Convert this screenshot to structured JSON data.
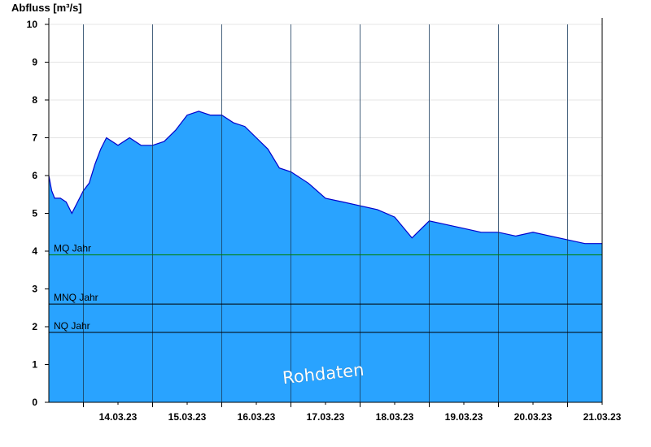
{
  "chart_data": {
    "type": "area",
    "ylabel": "Abfluss [m³/s]",
    "ylim": [
      0,
      10
    ],
    "yticks": [
      "0",
      "1",
      "2",
      "3",
      "4",
      "5",
      "6",
      "7",
      "8",
      "9",
      "10"
    ],
    "xlim": [
      "13.03.23 12:00",
      "21.03.23 12:00"
    ],
    "xtick_labels": [
      "14.03.23",
      "15.03.23",
      "16.03.23",
      "17.03.23",
      "18.03.23",
      "19.03.23",
      "20.03.23",
      "21.03.23"
    ],
    "grid": true,
    "watermark": "Rohdaten",
    "fill_color": "#29a3ff",
    "line_color": "#0000cc",
    "reference_lines": [
      {
        "label": "MQ Jahr",
        "value": 3.9,
        "color": "#007f00"
      },
      {
        "label": "MNQ Jahr",
        "value": 2.6,
        "color": "#000000"
      },
      {
        "label": "NQ Jahr",
        "value": 1.85,
        "color": "#000000"
      }
    ],
    "series": [
      {
        "x": [
          "13.03.23 12:00",
          "13.03.23 13:00",
          "13.03.23 14:00",
          "13.03.23 16:00",
          "13.03.23 18:00",
          "13.03.23 20:00",
          "13.03.23 22:00",
          "14.03.23 00:00",
          "14.03.23 02:00",
          "14.03.23 04:00",
          "14.03.23 06:00",
          "14.03.23 08:00",
          "14.03.23 12:00",
          "14.03.23 16:00",
          "14.03.23 20:00",
          "15.03.23 00:00",
          "15.03.23 04:00",
          "15.03.23 08:00",
          "15.03.23 12:00",
          "15.03.23 16:00",
          "15.03.23 20:00",
          "16.03.23 00:00",
          "16.03.23 04:00",
          "16.03.23 08:00",
          "16.03.23 12:00",
          "16.03.23 16:00",
          "16.03.23 20:00",
          "17.03.23 00:00",
          "17.03.23 06:00",
          "17.03.23 12:00",
          "17.03.23 18:00",
          "18.03.23 00:00",
          "18.03.23 06:00",
          "18.03.23 12:00",
          "18.03.23 18:00",
          "19.03.23 00:00",
          "19.03.23 06:00",
          "19.03.23 12:00",
          "19.03.23 18:00",
          "20.03.23 00:00",
          "20.03.23 06:00",
          "20.03.23 12:00",
          "20.03.23 18:00",
          "21.03.23 00:00",
          "21.03.23 06:00",
          "21.03.23 12:00"
        ],
        "y": [
          6.0,
          5.6,
          5.4,
          5.4,
          5.3,
          5.0,
          5.3,
          5.6,
          5.8,
          6.3,
          6.7,
          7.0,
          6.8,
          7.0,
          6.8,
          6.8,
          6.9,
          7.2,
          7.6,
          7.7,
          7.6,
          7.6,
          7.4,
          7.3,
          7.0,
          6.7,
          6.2,
          6.1,
          5.8,
          5.4,
          5.3,
          5.2,
          5.1,
          4.9,
          4.35,
          4.8,
          4.7,
          4.6,
          4.5,
          4.5,
          4.4,
          4.5,
          4.4,
          4.3,
          4.2,
          4.2
        ]
      }
    ]
  }
}
